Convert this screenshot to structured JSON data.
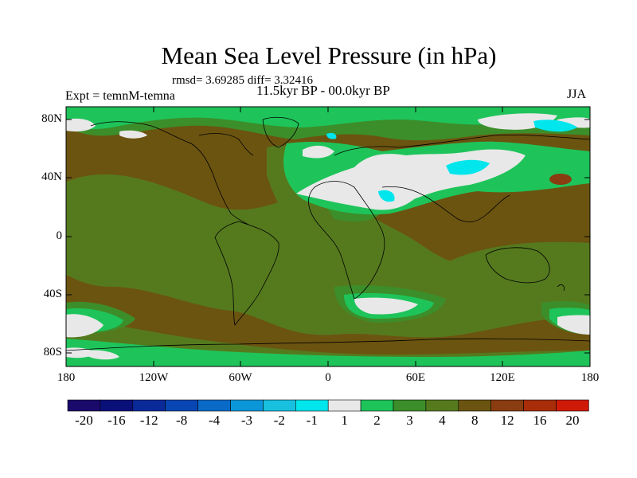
{
  "title": "Mean Sea Level Pressure (in hPa)",
  "stats_line": "rmsd= 3.69285 diff= 3.32416",
  "period": "11.5kyr BP - 00.0kyr BP",
  "experiment": "Expt = temnM-temna",
  "season": "JJA",
  "lat_labels": [
    "80N",
    "40N",
    "0",
    "40S",
    "80S"
  ],
  "lon_labels": [
    "180",
    "120W",
    "60W",
    "0",
    "60E",
    "120E",
    "180"
  ],
  "colorbar": {
    "labels": [
      "-20",
      "-16",
      "-12",
      "-8",
      "-4",
      "-3",
      "-2",
      "-1",
      "1",
      "2",
      "3",
      "4",
      "8",
      "12",
      "16",
      "20"
    ],
    "colors": [
      "#1a0a6b",
      "#0a107a",
      "#0a2a9a",
      "#0846b4",
      "#0a6ac8",
      "#0a96d8",
      "#18c0e0",
      "#00e6ec",
      "#e8e8e8",
      "#1ec45a",
      "#3c8e2a",
      "#557a1e",
      "#6b5410",
      "#8a3d10",
      "#a82d08",
      "#d01a08"
    ]
  },
  "colors": {
    "field_base": "#6b5410",
    "tier4": "#557a1e",
    "tier3": "#3c8e2a",
    "tier2": "#1ec45a",
    "near_zero": "#e8e8e8",
    "neg_cyan": "#00e6ec",
    "tier8": "#8a3d10"
  }
}
